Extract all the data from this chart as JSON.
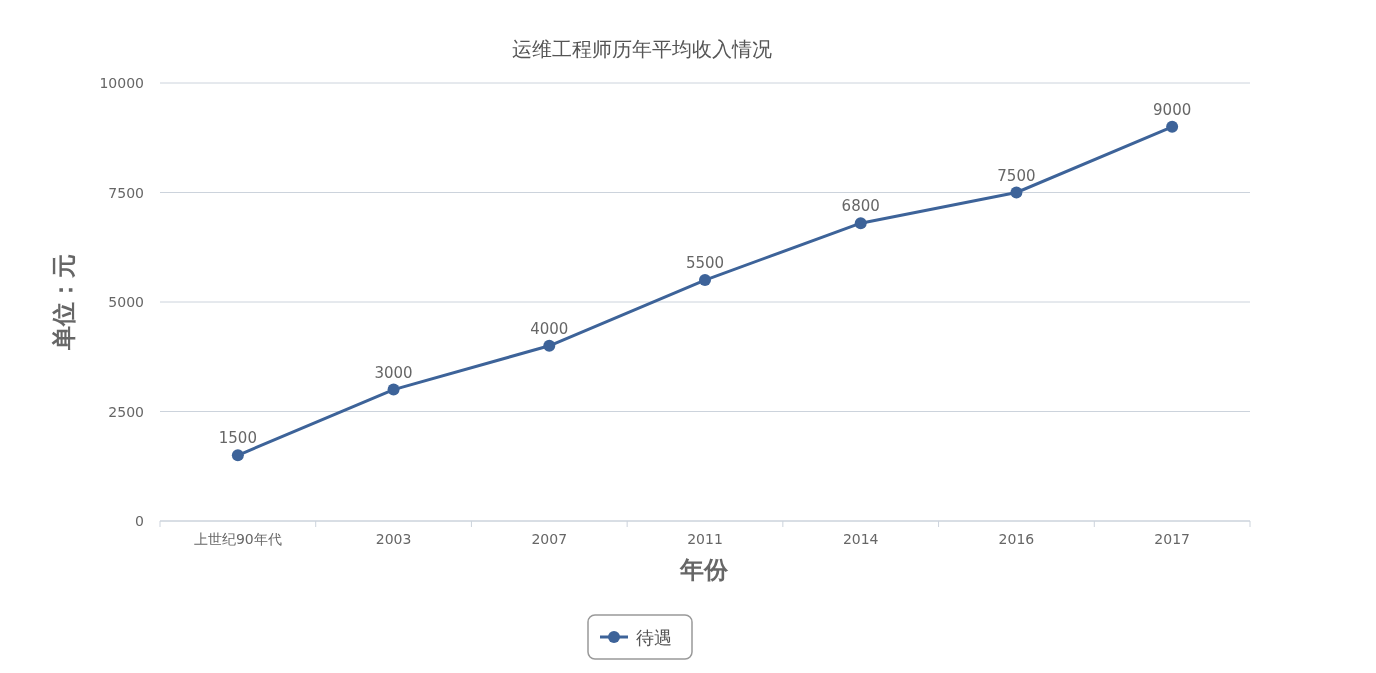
{
  "chart_data": {
    "type": "line",
    "title": "运维工程师历年平均收入情况",
    "xlabel": "年份",
    "ylabel": "单位：元",
    "categories": [
      "上世纪90年代",
      "2003",
      "2007",
      "2011",
      "2014",
      "2016",
      "2017"
    ],
    "series": [
      {
        "name": "待遇",
        "color": "#3d6399",
        "values": [
          1500,
          3000,
          4000,
          5500,
          6800,
          7500,
          9000
        ]
      }
    ],
    "ylim": [
      0,
      10000
    ],
    "yticks": [
      0,
      2500,
      5000,
      7500,
      10000
    ],
    "grid": "y",
    "legend": "bottom",
    "marker": "circle",
    "line_style": "solid",
    "data_labels": true
  }
}
